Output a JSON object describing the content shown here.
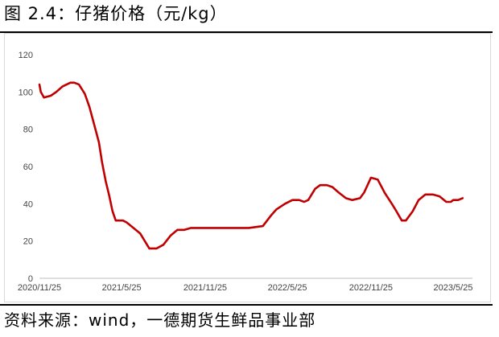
{
  "header": {
    "title": "图 2.4：仔猪价格（元/kg）"
  },
  "footer": {
    "source": "资料来源：wind，一德期货生鲜品事业部"
  },
  "chart_data": {
    "type": "line",
    "title": "",
    "xlabel": "",
    "ylabel": "",
    "ylim": [
      0,
      120
    ],
    "y_ticks": [
      0,
      20,
      40,
      60,
      80,
      100,
      120
    ],
    "x_ticks": [
      "2020/11/25",
      "2021/5/25",
      "2021/11/25",
      "2022/5/25",
      "2022/11/25",
      "2023/5/25"
    ],
    "grid": false,
    "line_color": "#c00000",
    "series": [
      {
        "x": [
          "2020/11/25",
          "2020/11/28",
          "2020/12/5",
          "2020/12/20",
          "2021/1/1",
          "2021/1/15",
          "2021/2/1",
          "2021/2/10",
          "2021/2/20",
          "2021/3/5",
          "2021/3/15",
          "2021/3/25",
          "2021/4/5",
          "2021/4/12",
          "2021/4/20",
          "2021/4/28",
          "2021/5/5",
          "2021/5/12",
          "2021/5/18",
          "2021/5/28",
          "2021/6/5",
          "2021/6/20",
          "2021/7/5",
          "2021/7/15",
          "2021/7/25",
          "2021/8/10",
          "2021/8/25",
          "2021/9/10",
          "2021/9/25",
          "2021/10/10",
          "2021/10/25",
          "2021/11/10",
          "2021/11/25",
          "2021/12/10",
          "2022/1/1",
          "2022/2/1",
          "2022/3/1",
          "2022/4/1",
          "2022/4/20",
          "2022/5/1",
          "2022/5/20",
          "2022/6/5",
          "2022/6/20",
          "2022/7/1",
          "2022/7/10",
          "2022/7/25",
          "2022/8/5",
          "2022/8/20",
          "2022/9/1",
          "2022/9/15",
          "2022/10/1",
          "2022/10/15",
          "2022/11/1",
          "2022/11/10",
          "2022/11/25",
          "2022/12/10",
          "2022/12/25",
          "2023/1/10",
          "2023/1/20",
          "2023/2/1",
          "2023/2/10",
          "2023/2/25",
          "2023/3/10",
          "2023/3/25",
          "2023/4/10",
          "2023/4/25",
          "2023/5/10",
          "2023/5/20",
          "2023/5/25",
          "2023/6/5",
          "2023/6/15"
        ],
        "values": [
          104,
          100,
          97,
          98,
          100,
          103,
          105,
          105,
          104,
          99,
          92,
          83,
          73,
          62,
          52,
          44,
          36,
          31,
          31,
          31,
          30,
          27,
          24,
          20,
          16,
          16,
          18,
          23,
          26,
          26,
          27,
          27,
          27,
          27,
          27,
          27,
          27,
          28,
          34,
          37,
          40,
          42,
          42,
          41,
          42,
          48,
          50,
          50,
          49,
          46,
          43,
          42,
          43,
          46,
          54,
          53,
          46,
          40,
          36,
          31,
          31,
          36,
          42,
          45,
          45,
          44,
          41,
          41,
          42,
          42,
          43
        ]
      }
    ]
  }
}
